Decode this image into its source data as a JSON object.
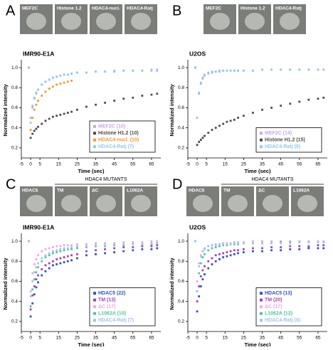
{
  "chart_data": [
    {
      "type": "scatter",
      "panel": "A",
      "images": [
        "MEF2C",
        "Histone 1.2",
        "HDAC4-nucl.",
        "HDAC4-Ratj"
      ],
      "title": "IMR90-E1A",
      "xlabel": "Time (sec)",
      "ylabel": "Normalized intensity",
      "xlim": [
        -5,
        70
      ],
      "xticks": [
        -5,
        0,
        5,
        15,
        25,
        35,
        45,
        55,
        65
      ],
      "ylim": [
        0.1,
        1.05
      ],
      "yticks": [
        0.2,
        0.4,
        0.6,
        0.8,
        {
          "value": 1.0,
          "label": "1.0"
        }
      ],
      "legend": "lower right",
      "x": [
        -1,
        0,
        1,
        2,
        3,
        4,
        6,
        8,
        10,
        12,
        14,
        16,
        18,
        20,
        22,
        25,
        30,
        35,
        40,
        45,
        50,
        55,
        60,
        65,
        68
      ],
      "series": [
        {
          "name": "MEF2C (10)",
          "color": "#c9a6ea",
          "values": [
            1.0,
            0.5,
            0.62,
            0.7,
            0.75,
            0.78,
            0.83,
            0.86,
            0.88,
            0.9,
            0.91,
            0.92,
            0.93,
            0.93,
            0.94,
            0.95,
            0.95,
            0.96,
            0.96,
            0.96,
            0.97,
            0.97,
            0.97,
            0.97,
            0.97
          ]
        },
        {
          "name": "Histone H1.2 (10)",
          "color": "#4a4d48",
          "values": [
            1.0,
            0.3,
            0.34,
            0.37,
            0.39,
            0.41,
            0.44,
            0.47,
            0.49,
            0.51,
            0.52,
            0.53,
            0.54,
            0.55,
            0.56,
            0.58,
            0.61,
            0.63,
            0.65,
            0.67,
            0.69,
            0.7,
            0.72,
            0.73,
            0.74
          ]
        },
        {
          "name": "HDAC4-nucl. (10)",
          "color": "#f09a2c",
          "values": [
            1.0,
            0.38,
            0.5,
            0.58,
            0.63,
            0.67,
            0.72,
            0.76,
            0.79,
            0.81,
            0.83,
            0.84,
            0.85,
            0.86,
            0.87,
            null,
            null,
            null,
            null,
            null,
            null,
            null,
            null,
            null,
            null
          ]
        },
        {
          "name": "HDAC4-Ratj (7)",
          "color": "#8ccbef",
          "values": [
            1.0,
            0.45,
            0.6,
            0.69,
            0.74,
            0.78,
            0.83,
            0.86,
            0.88,
            0.9,
            0.91,
            0.92,
            0.93,
            0.93,
            0.94,
            0.95,
            0.95,
            0.96,
            0.96,
            0.97,
            0.97,
            0.97,
            0.97,
            0.98,
            0.98
          ]
        }
      ]
    },
    {
      "type": "scatter",
      "panel": "B",
      "images": [
        "MEF2C",
        "Histone 1.2",
        "HDAC4-Ratj"
      ],
      "title": "U2OS",
      "xlabel": "Time (sec)",
      "ylabel": "Normalized intensity",
      "xlim": [
        -5,
        70
      ],
      "xticks": [
        -5,
        0,
        5,
        15,
        25,
        35,
        45,
        55,
        65
      ],
      "ylim": [
        0.1,
        1.05
      ],
      "yticks": [
        0.2,
        0.4,
        0.6,
        0.8,
        {
          "value": 1.0,
          "label": "1.0"
        }
      ],
      "legend": "lower right",
      "x": [
        -1,
        0,
        1,
        2,
        3,
        4,
        6,
        8,
        10,
        12,
        14,
        16,
        18,
        20,
        22,
        25,
        30,
        35,
        40,
        45,
        50,
        55,
        60,
        65,
        68
      ],
      "series": [
        {
          "name": "MEF2C (14)",
          "color": "#c9a6ea",
          "values": [
            1.0,
            0.5,
            0.74,
            0.84,
            0.89,
            0.92,
            0.94,
            0.95,
            0.96,
            0.96,
            0.97,
            0.97,
            0.97,
            0.97,
            0.97,
            0.97,
            0.97,
            0.98,
            0.98,
            0.98,
            0.98,
            0.98,
            0.98,
            0.98,
            0.98
          ]
        },
        {
          "name": "Histone H1.2 (15)",
          "color": "#4a4d48",
          "values": [
            1.0,
            0.23,
            0.26,
            0.28,
            0.3,
            0.32,
            0.35,
            0.38,
            0.4,
            0.42,
            0.44,
            0.46,
            0.47,
            0.48,
            0.5,
            0.52,
            0.55,
            0.58,
            0.6,
            0.62,
            0.64,
            0.66,
            0.68,
            0.69,
            0.7
          ]
        },
        {
          "name": "HDAC4-Ratj (6)",
          "color": "#8ccbef",
          "values": [
            1.0,
            0.5,
            0.75,
            0.85,
            0.9,
            0.93,
            0.95,
            0.96,
            0.96,
            0.97,
            0.97,
            0.97,
            0.97,
            0.97,
            0.97,
            0.97,
            0.97,
            0.98,
            0.98,
            0.98,
            0.98,
            0.98,
            0.98,
            0.98,
            0.98
          ]
        }
      ]
    },
    {
      "type": "scatter",
      "panel": "C",
      "images": [
        "HDAC5",
        "TM",
        "ΔC",
        "L1062A"
      ],
      "group_label": "HDAC4 MUTANTS",
      "title": "IMR90-E1A",
      "xlabel": "Time (sec)",
      "ylabel": "Normalized intensity",
      "xlim": [
        -5,
        70
      ],
      "xticks": [
        -5,
        0,
        5,
        15,
        25,
        35,
        45,
        55,
        65
      ],
      "ylim": [
        0.1,
        1.05
      ],
      "yticks": [
        0.2,
        0.4,
        0.6,
        0.8,
        {
          "value": 1.0,
          "label": "1.0"
        }
      ],
      "legend": "lower right",
      "x": [
        -1,
        0,
        1,
        2,
        3,
        4,
        6,
        8,
        10,
        12,
        14,
        16,
        18,
        20,
        22,
        25,
        30,
        35,
        40,
        45,
        50,
        55,
        60,
        65,
        68
      ],
      "series": [
        {
          "name": "HDAC5 (22)",
          "color": "#2f52c6",
          "values": [
            1.0,
            0.25,
            0.38,
            0.47,
            0.54,
            0.59,
            0.66,
            0.7,
            0.73,
            0.76,
            0.77,
            0.78,
            0.79,
            0.8,
            0.81,
            0.83,
            0.86,
            0.87,
            0.88,
            0.89,
            0.9,
            0.91,
            0.92,
            0.92,
            0.93
          ]
        },
        {
          "name": "TM (13)",
          "color": "#b03eae",
          "values": [
            1.0,
            0.32,
            0.46,
            0.55,
            0.62,
            0.66,
            0.72,
            0.76,
            0.78,
            0.8,
            0.82,
            0.83,
            0.84,
            0.85,
            0.86,
            0.87,
            0.9,
            0.91,
            0.92,
            0.93,
            0.94,
            0.94,
            0.95,
            0.95,
            0.96
          ]
        },
        {
          "name": "ΔC (17)",
          "color": "#f2a6e2",
          "values": [
            1.0,
            0.5,
            0.68,
            0.77,
            0.82,
            0.86,
            0.9,
            0.92,
            0.93,
            0.94,
            0.95,
            0.95,
            0.96,
            0.96,
            0.96,
            0.97,
            0.97,
            0.98,
            0.98,
            0.98,
            0.99,
            0.99,
            0.99,
            1.0,
            1.0
          ]
        },
        {
          "name": "L1062A (10)",
          "color": "#4cc7a0",
          "values": [
            1.0,
            0.35,
            0.52,
            0.62,
            0.69,
            0.74,
            0.8,
            0.84,
            0.86,
            0.88,
            0.89,
            0.9,
            0.91,
            0.92,
            0.92,
            0.93,
            0.94,
            0.95,
            0.95,
            0.96,
            0.96,
            0.97,
            0.97,
            0.97,
            0.98
          ]
        },
        {
          "name": "HDAC4-Ratj (7)",
          "color": "#9fc6ee",
          "values": [
            1.0,
            0.45,
            0.6,
            0.69,
            0.74,
            0.78,
            0.83,
            0.86,
            0.88,
            0.9,
            0.91,
            0.92,
            0.93,
            0.93,
            0.94,
            0.95,
            0.95,
            0.96,
            0.96,
            0.97,
            0.97,
            0.97,
            0.97,
            0.98,
            0.98
          ]
        }
      ]
    },
    {
      "type": "scatter",
      "panel": "D",
      "images": [
        "HDAC5",
        "TM",
        "ΔC",
        "L1062A"
      ],
      "group_label": "HDAC4 MUTANTS",
      "title": "U2OS",
      "xlabel": "Time (sec)",
      "ylabel": "Normalized intensity",
      "xlim": [
        -5,
        70
      ],
      "xticks": [
        -5,
        0,
        5,
        15,
        25,
        35,
        45,
        55,
        65
      ],
      "ylim": [
        0.1,
        1.05
      ],
      "yticks": [
        0.2,
        0.4,
        0.6,
        0.8,
        {
          "value": 1.0,
          "label": "1.0"
        }
      ],
      "legend": "lower right",
      "x": [
        -1,
        0,
        1,
        2,
        3,
        4,
        6,
        8,
        10,
        12,
        14,
        16,
        18,
        20,
        22,
        25,
        30,
        35,
        40,
        45,
        50,
        55,
        60,
        65,
        68
      ],
      "series": [
        {
          "name": "HDAC5 (13)",
          "color": "#2f52c6",
          "values": [
            1.0,
            0.3,
            0.45,
            0.55,
            0.62,
            0.67,
            0.73,
            0.77,
            0.8,
            0.82,
            0.84,
            0.85,
            0.86,
            0.87,
            0.88,
            0.89,
            0.9,
            0.9,
            0.91,
            0.91,
            0.92,
            0.92,
            0.93,
            0.93,
            0.93
          ]
        },
        {
          "name": "TM (20)",
          "color": "#b03eae",
          "values": [
            1.0,
            0.4,
            0.55,
            0.65,
            0.71,
            0.75,
            0.8,
            0.83,
            0.86,
            0.87,
            0.88,
            0.89,
            0.9,
            0.91,
            0.91,
            0.92,
            0.93,
            0.93,
            0.94,
            0.94,
            0.95,
            0.95,
            0.95,
            0.96,
            0.96
          ]
        },
        {
          "name": "ΔC (17)",
          "color": "#f2a6e2",
          "values": [
            1.0,
            0.6,
            0.78,
            0.86,
            0.9,
            0.92,
            0.95,
            0.96,
            0.97,
            0.97,
            0.98,
            0.98,
            0.98,
            0.99,
            0.99,
            0.99,
            1.0,
            1.0,
            1.0,
            1.0,
            1.0,
            1.0,
            1.0,
            1.0,
            1.0
          ]
        },
        {
          "name": "L1062A (12)",
          "color": "#4cc7a0",
          "values": [
            1.0,
            0.5,
            0.68,
            0.78,
            0.84,
            0.87,
            0.91,
            0.93,
            0.94,
            0.95,
            0.96,
            0.96,
            0.97,
            0.97,
            0.97,
            0.98,
            0.98,
            0.98,
            0.98,
            0.99,
            0.99,
            0.99,
            0.99,
            0.99,
            0.99
          ]
        },
        {
          "name": "HDAC4-Ratj (6)",
          "color": "#9fc6ee",
          "values": [
            1.0,
            0.5,
            0.75,
            0.85,
            0.9,
            0.93,
            0.95,
            0.96,
            0.96,
            0.97,
            0.97,
            0.97,
            0.97,
            0.98,
            0.98,
            0.98,
            0.98,
            0.98,
            0.98,
            0.98,
            0.98,
            0.99,
            0.99,
            0.99,
            0.99
          ]
        }
      ]
    }
  ]
}
